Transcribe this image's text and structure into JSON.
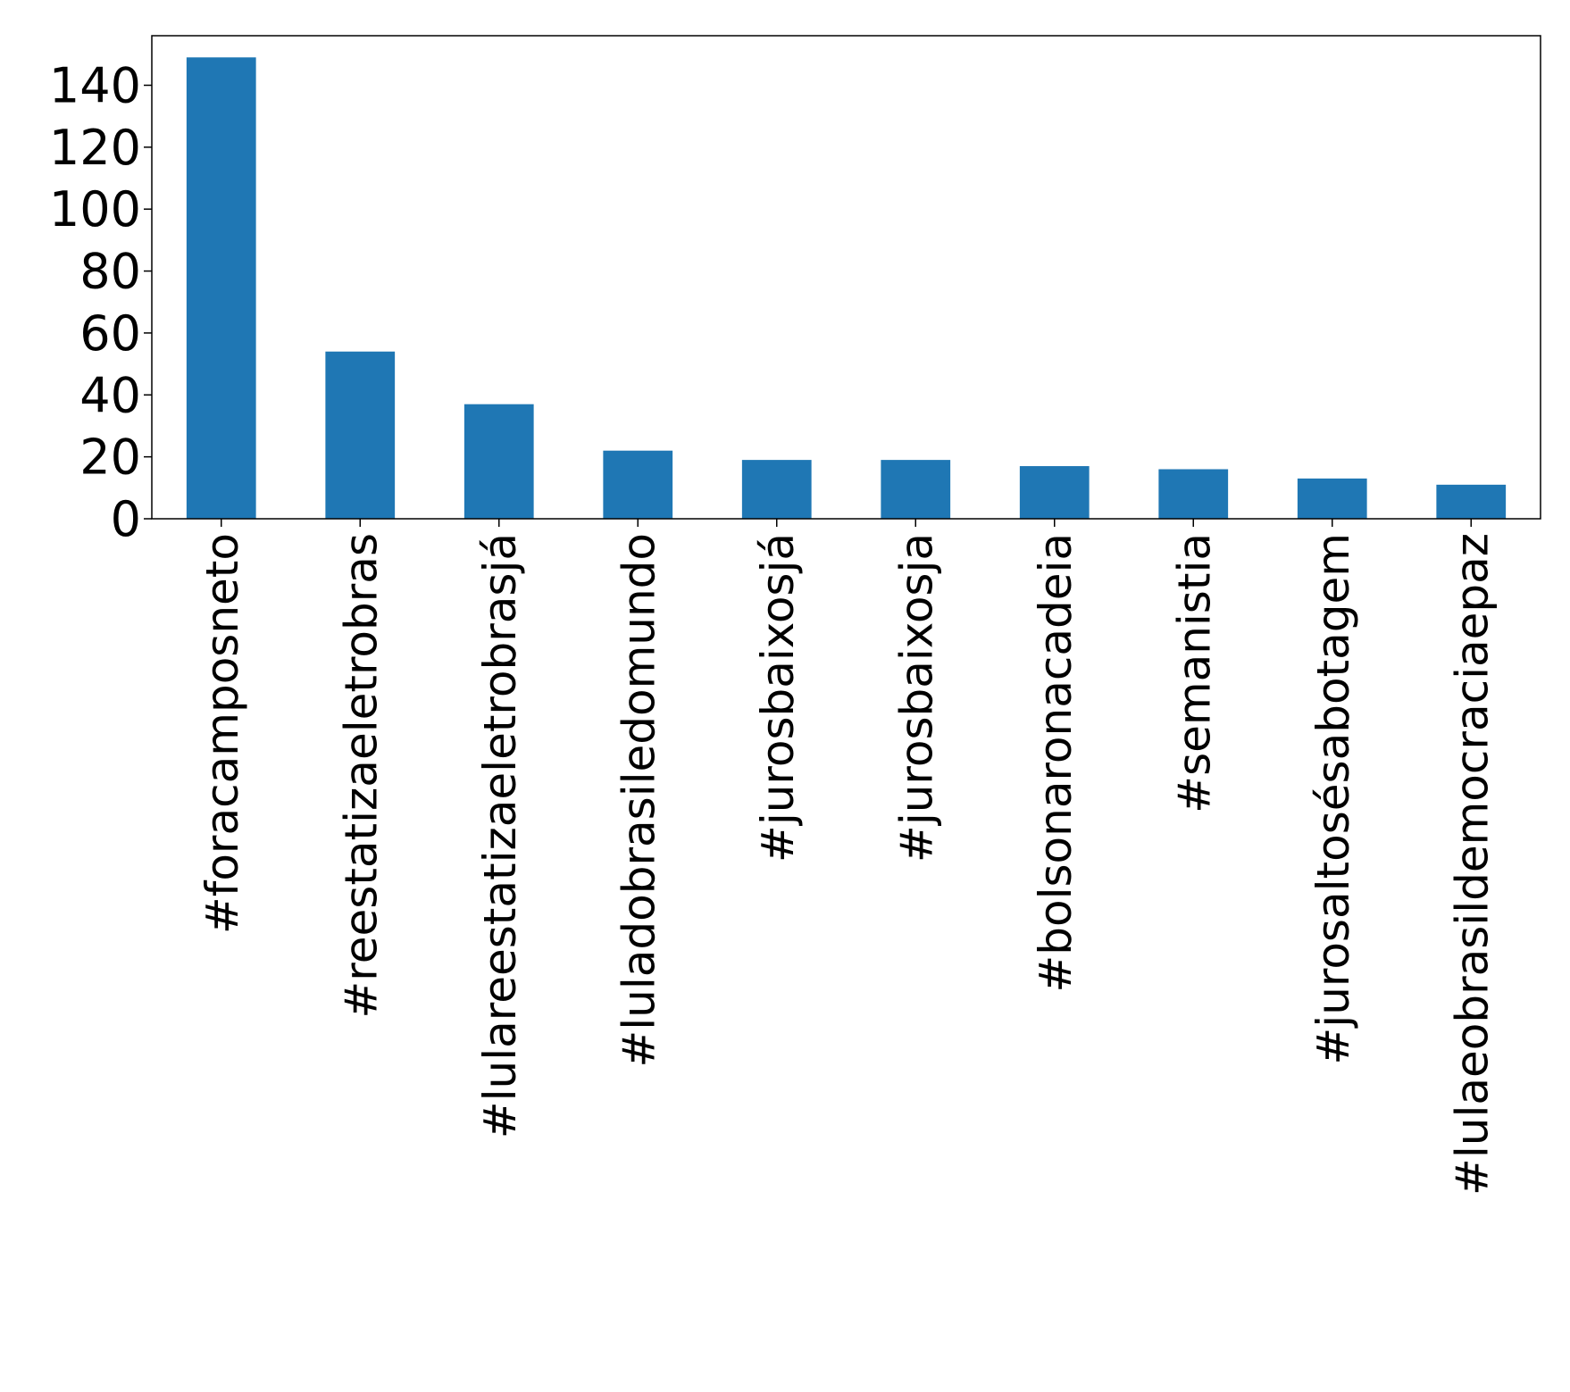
{
  "chart_data": {
    "type": "bar",
    "title": "",
    "xlabel": "",
    "ylabel": "",
    "categories": [
      "#foracamposneto",
      "#reestatizaeletrobras",
      "#lulareestatizaeletrobrasjá",
      "#luladobrasiledomundo",
      "#jurosbaixosjá",
      "#jurosbaixosja",
      "#bolsonaronacadeia",
      "#semanistia",
      "#jurosaltosésabotagem",
      "#lulaeobrasildemocraciaepaz"
    ],
    "values": [
      149,
      54,
      37,
      22,
      19,
      19,
      17,
      16,
      13,
      11
    ],
    "ylim": [
      0,
      156
    ],
    "yticks": [
      0,
      20,
      40,
      60,
      80,
      100,
      120,
      140
    ],
    "bar_color": "#1f77b4",
    "grid": false,
    "legend": "none"
  }
}
